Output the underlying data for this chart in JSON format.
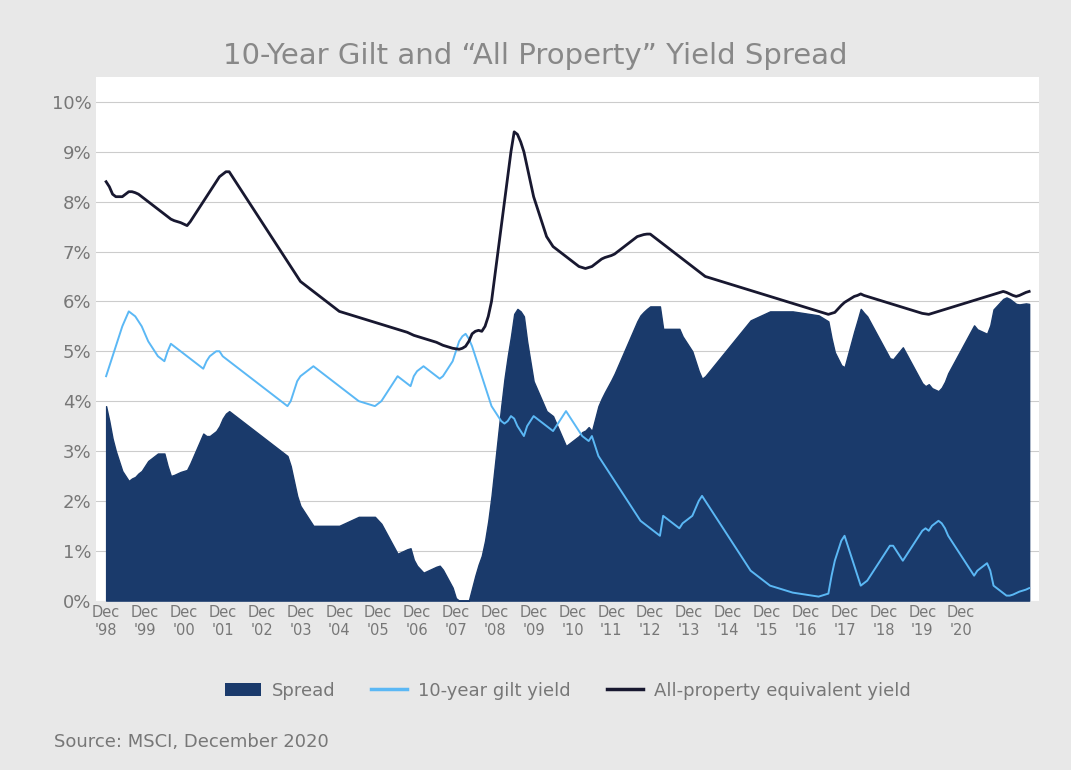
{
  "title": "10-Year Gilt and “All Property” Yield Spread",
  "source_text": "Source: MSCI, December 2020",
  "background_color": "#e8e8e8",
  "plot_background_color": "#ffffff",
  "title_color": "#888888",
  "spread_color": "#1a3a6b",
  "gilt_color": "#5bb8f5",
  "property_color": "#181830",
  "legend_labels": [
    "Spread",
    "10-year gilt yield",
    "All-property equivalent yield"
  ],
  "x_labels": [
    "Dec\n'98",
    "Dec\n'99",
    "Dec\n'00",
    "Dec\n'01",
    "Dec\n'02",
    "Dec\n'03",
    "Dec\n'04",
    "Dec\n'05",
    "Dec\n'06",
    "Dec\n'07",
    "Dec\n'08",
    "Dec\n'09",
    "Dec\n'10",
    "Dec\n'11",
    "Dec\n'12",
    "Dec\n'13",
    "Dec\n'14",
    "Dec\n'15",
    "Dec\n'16",
    "Dec\n'17",
    "Dec\n'18",
    "Dec\n'19",
    "Dec\n'20"
  ],
  "ylim": [
    0,
    0.105
  ],
  "yticks": [
    0.0,
    0.01,
    0.02,
    0.03,
    0.04,
    0.05,
    0.06,
    0.07,
    0.08,
    0.09,
    0.1
  ],
  "ytick_labels": [
    "0%",
    "1%",
    "2%",
    "3%",
    "4%",
    "5%",
    "6%",
    "7%",
    "8%",
    "9%",
    "10%"
  ]
}
